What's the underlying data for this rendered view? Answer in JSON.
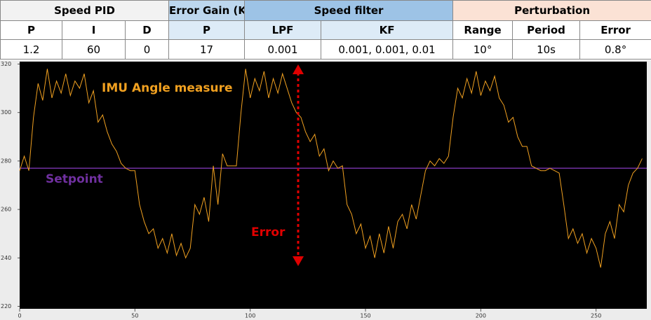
{
  "table": {
    "groups": [
      "Speed PID",
      "Error Gain (K)",
      "Speed filter",
      "Perturbation"
    ],
    "columns": [
      "P",
      "I",
      "D",
      "P",
      "LPF",
      "KF",
      "Range",
      "Period",
      "Error"
    ],
    "rows": [
      [
        "1.2",
        "60",
        "0",
        "17",
        "0.001",
        "0.001, 0.001, 0.01",
        "10°",
        "10s",
        "0.8°"
      ]
    ]
  },
  "chart_data": {
    "type": "line",
    "annotations": [
      "Error"
    ],
    "x": [
      0,
      2,
      4,
      6,
      8,
      10,
      12,
      14,
      16,
      18,
      20,
      22,
      24,
      26,
      28,
      30,
      32,
      34,
      36,
      38,
      40,
      42,
      44,
      46,
      48,
      50,
      52,
      54,
      56,
      58,
      60,
      62,
      64,
      66,
      68,
      70,
      72,
      74,
      76,
      78,
      80,
      82,
      84,
      86,
      88,
      90,
      92,
      94,
      96,
      98,
      100,
      102,
      104,
      106,
      108,
      110,
      112,
      114,
      116,
      118,
      120,
      122,
      124,
      126,
      128,
      130,
      132,
      134,
      136,
      138,
      140,
      142,
      144,
      146,
      148,
      150,
      152,
      154,
      156,
      158,
      160,
      162,
      164,
      166,
      168,
      170,
      172,
      174,
      176,
      178,
      180,
      182,
      184,
      186,
      188,
      190,
      192,
      194,
      196,
      198,
      200,
      202,
      204,
      206,
      208,
      210,
      212,
      214,
      216,
      218,
      220,
      222,
      224,
      226,
      228,
      230,
      232,
      234,
      236,
      238,
      240,
      242,
      244,
      246,
      248,
      250,
      252,
      254,
      256,
      258,
      260,
      262,
      264,
      266,
      268,
      270
    ],
    "series": [
      {
        "name": "IMU Angle measure",
        "color": "#f0a020",
        "values": [
          276,
          282,
          276,
          298,
          312,
          305,
          318,
          306,
          313,
          308,
          316,
          307,
          313,
          310,
          316,
          304,
          309,
          296,
          299,
          292,
          287,
          284,
          279,
          277,
          276,
          276,
          262,
          255,
          250,
          252,
          244,
          248,
          242,
          250,
          241,
          246,
          240,
          244,
          262,
          258,
          265,
          255,
          278,
          262,
          283,
          278,
          278,
          278,
          300,
          318,
          306,
          314,
          309,
          317,
          306,
          314,
          308,
          316,
          310,
          304,
          300,
          298,
          292,
          288,
          291,
          282,
          285,
          276,
          280,
          277,
          278,
          262,
          258,
          250,
          254,
          244,
          249,
          240,
          250,
          242,
          253,
          244,
          255,
          258,
          252,
          262,
          256,
          266,
          276,
          280,
          278,
          281,
          279,
          282,
          298,
          310,
          306,
          314,
          308,
          317,
          307,
          313,
          309,
          315,
          306,
          303,
          296,
          298,
          290,
          286,
          286,
          278,
          277,
          276,
          276,
          277,
          276,
          275,
          262,
          248,
          252,
          246,
          250,
          242,
          248,
          244,
          236,
          250,
          255,
          248,
          262,
          259,
          270,
          275,
          277,
          281
        ]
      }
    ],
    "setpoint": {
      "name": "Setpoint",
      "color": "#7030a0",
      "value": 277
    },
    "xlim": [
      0,
      272
    ],
    "xticks": [
      0,
      50,
      100,
      150,
      200,
      250
    ],
    "ylim": [
      219,
      321
    ],
    "yticks": [
      220,
      240,
      260,
      280,
      300,
      320
    ],
    "grid": false
  }
}
